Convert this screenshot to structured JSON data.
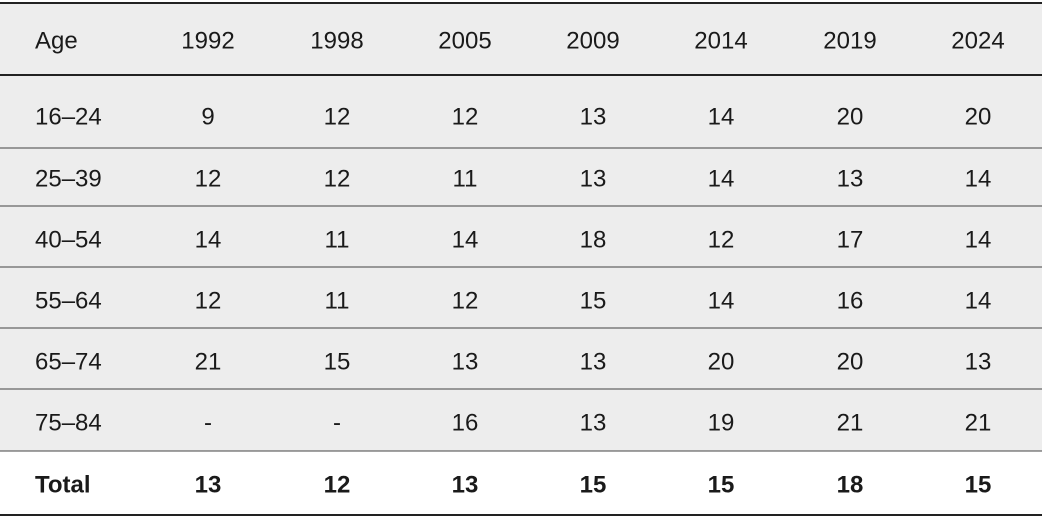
{
  "table": {
    "header": [
      "Age",
      "1992",
      "1998",
      "2005",
      "2009",
      "2014",
      "2019",
      "2024"
    ],
    "rows": [
      [
        "16–24",
        9,
        12,
        12,
        13,
        14,
        20,
        20
      ],
      [
        "25–39",
        12,
        12,
        11,
        13,
        14,
        13,
        14
      ],
      [
        "40–54",
        14,
        11,
        14,
        18,
        12,
        17,
        14
      ],
      [
        "55–64",
        12,
        11,
        12,
        15,
        14,
        16,
        14
      ],
      [
        "65–74",
        21,
        15,
        13,
        13,
        20,
        20,
        13
      ],
      [
        "75–84",
        "-",
        "-",
        16,
        13,
        19,
        21,
        21
      ],
      [
        "Total",
        13,
        12,
        13,
        15,
        15,
        18,
        15
      ]
    ]
  }
}
